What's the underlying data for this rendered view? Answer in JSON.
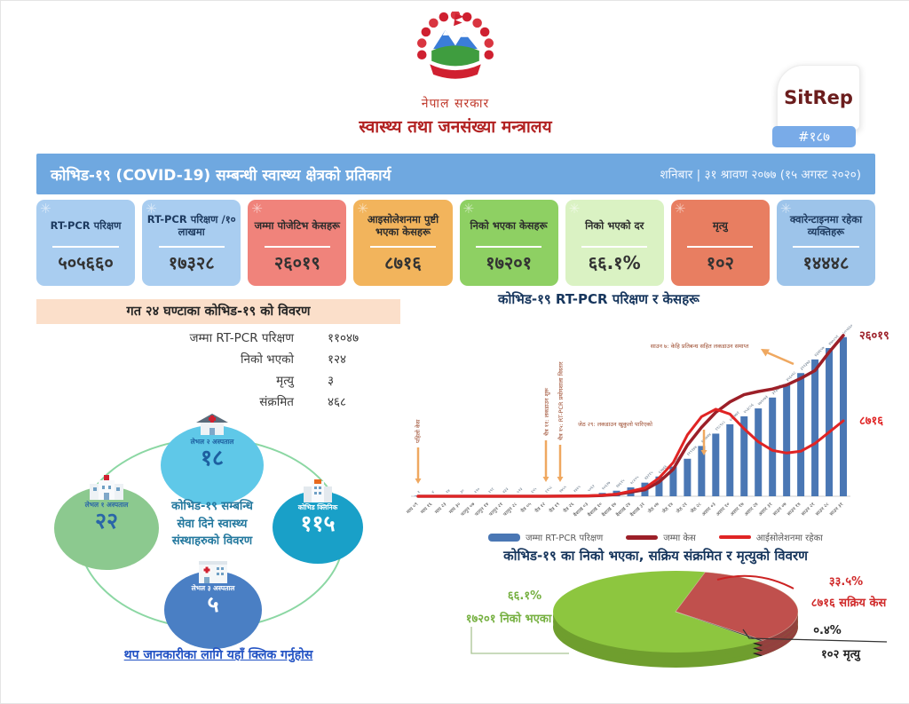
{
  "brand": {
    "gov": "नेपाल सरकार",
    "ministry": "स्वास्थ्य तथा जनसंख्या मन्त्रालय",
    "sitrep": "SitRep",
    "sitrep_number": "#१८७"
  },
  "header": {
    "title": "कोभिड-१९ (COVID-19) सम्बन्धी स्वास्थ्य क्षेत्रको प्रतिकार्य",
    "date": "शनिबार | ३१ श्रावण २०७७ (१५ अगस्ट २०२०)"
  },
  "stat_cards": [
    {
      "label": "RT-PCR परिक्षण",
      "value": "५०५६६०",
      "bg": "#a9cdf0",
      "fg": "#1d3a5f"
    },
    {
      "label": "RT-PCR परिक्षण /१० लाखमा",
      "value": "१७३२८",
      "bg": "#a9cdf0",
      "fg": "#1d3a5f"
    },
    {
      "label": "जम्मा पोजेटिभ केसहरू",
      "value": "२६०१९",
      "bg": "#f0837b",
      "fg": "#2b2b2b"
    },
    {
      "label": "आइसोलेशनमा पुष्टी भएका केसहरू",
      "value": "८७१६",
      "bg": "#f2b45c",
      "fg": "#2b2b2b"
    },
    {
      "label": "निको भएका केसहरू",
      "value": "१७२०१",
      "bg": "#8ed063",
      "fg": "#2b2b2b"
    },
    {
      "label": "निको भएको दर",
      "value": "६६.१%",
      "bg": "#daf2c3",
      "fg": "#2b2b2b"
    },
    {
      "label": "मृत्यु",
      "value": "१०२",
      "bg": "#e87e61",
      "fg": "#2b2b2b"
    },
    {
      "label": "क्वारेन्टाइनमा रहेका व्यक्तिहरू",
      "value": "१४४४८",
      "bg": "#9dc4ea",
      "fg": "#1d3a5f"
    }
  ],
  "last24": {
    "title": "गत २४ घण्टाका कोभिड-१९ को विवरण",
    "rows": [
      {
        "label": "जम्मा RT-PCR परिक्षण",
        "value": "११०४७"
      },
      {
        "label": "निको भएको",
        "value": "१२४"
      },
      {
        "label": "मृत्यु",
        "value": "३"
      },
      {
        "label": "संक्रमित",
        "value": "४६८"
      }
    ]
  },
  "facilities": {
    "center_lines": [
      "कोभिड-१९ सम्बन्धि",
      "सेवा दिने स्वास्थ्य",
      "संस्थाहरुको विवरण"
    ],
    "items": [
      {
        "label": "लेभल २ अस्पताल",
        "value": "१८",
        "bg": "#5fc8e8",
        "fg": "#1d5fa0"
      },
      {
        "label": "लेभल १ अस्पताल",
        "value": "२२",
        "bg": "#8cc98f",
        "fg": "#2a66a8"
      },
      {
        "label": "कोभिड क्लिनिक",
        "value": "११५",
        "bg": "#19a0c8",
        "fg": "#ffffff"
      },
      {
        "label": "लेभल ३ अस्पताल",
        "value": "५",
        "bg": "#4a7fc4",
        "fg": "#ffffff"
      }
    ],
    "link": "थप जानकारीका लागि यहाँ क्लिक गर्नुहोस"
  },
  "chart_data": [
    {
      "type": "bar",
      "title": "कोभिड-१९  RT-PCR परिक्षण र केसहरू",
      "grid": false,
      "legend_position": "bottom",
      "annotation_text_color": "#9c4b2e",
      "annotation_arrow_color": "#efa860",
      "categories": [
        "माघ ०९",
        "माघ १६",
        "माघ २३",
        "माघ ३०",
        "फागुन ०७",
        "फागुन १४",
        "फागुन २१",
        "फागुन २८",
        "चैत्र ०५",
        "चैत्र १२",
        "चैत्र १९",
        "चैत्र २६",
        "वैशाख ०३",
        "वैशाख १०",
        "वैशाख १७",
        "वैशाख २४",
        "वैशाख ३१",
        "जेठ ०७",
        "जेठ १४",
        "जेठ २१",
        "जेठ २८",
        "असार ०३",
        "असार १०",
        "असार १७",
        "असार २४",
        "असार ३१",
        "साउन ०७",
        "साउन १४",
        "साउन २१",
        "साउन २८",
        "साउन ३१"
      ],
      "series": [
        {
          "name": "जम्मा RT-PCR परिक्षण",
          "kind": "bar",
          "color": "#4a77b4",
          "axis_max": 550000,
          "values": [
            1,
            4,
            14,
            30,
            110,
            191,
            433,
            523,
            655,
            1158,
            1755,
            2425,
            5062,
            10627,
            17615,
            28205,
            43215,
            62766,
            94254,
            119147,
            159744,
            198988,
            228771,
            253856,
            279073,
            313646,
            356068,
            391373,
            434657,
            470859,
            505660
          ]
        },
        {
          "name": "जम्मा केस",
          "kind": "line",
          "color": "#9c1f28",
          "axis_max": 28000,
          "end_label": "२६०१९",
          "width": 3.5,
          "values": [
            0,
            0,
            0,
            1,
            1,
            1,
            1,
            2,
            2,
            5,
            9,
            31,
            59,
            134,
            295,
            682,
            1042,
            2300,
            4364,
            8274,
            11162,
            13564,
            15259,
            16423,
            16945,
            17344,
            17994,
            19063,
            20332,
            23310,
            26019
          ]
        },
        {
          "name": "आईसोलेशनमा रहेका",
          "kind": "line",
          "color": "#e02424",
          "axis_max": 20000,
          "end_label": "८७१६",
          "width": 3,
          "values": [
            0,
            0,
            0,
            1,
            1,
            1,
            1,
            2,
            2,
            5,
            9,
            30,
            55,
            120,
            250,
            600,
            950,
            2100,
            3900,
            7100,
            9200,
            10062,
            9500,
            7800,
            6300,
            5300,
            5000,
            5200,
            6100,
            7400,
            8716
          ]
        }
      ],
      "annotations": [
        {
          "text": "पहिलो केस",
          "orientation": "vertical"
        },
        {
          "text": "चैत्र ११: लकडाउन शुरू",
          "orientation": "vertical"
        },
        {
          "text": "चैत्र १५: RT-PCR प्रयोगशाला विस्तार",
          "orientation": "vertical"
        },
        {
          "text": "जेठ २९: लकडाउन खुकुलो पारिएको",
          "orientation": "horizontal"
        },
        {
          "text": "साउन ७: केहि प्रतिबन्ध सहित लकडाउन समाप्त",
          "orientation": "horizontal"
        }
      ]
    },
    {
      "type": "pie",
      "title": "कोभिड-१९ का निको भएका, सक्रिय संक्रमित र मृत्युको विवरण",
      "slices": [
        {
          "label": "निको भएका",
          "value": 17201,
          "pct": "६६.१%",
          "display": "१७२०१ निको भएका",
          "color": "#8dc63f",
          "depth_color": "#6f9e2e",
          "label_color": "#76b041"
        },
        {
          "label": "सक्रिय केस",
          "value": 8716,
          "pct": "३३.५%",
          "display": "८७१६ सक्रिय केस",
          "color": "#c0504d",
          "depth_color": "#93403e",
          "label_color": "#d02a2a"
        },
        {
          "label": "मृत्यु",
          "value": 102,
          "pct": "०.४%",
          "display": "१०२ मृत्यु",
          "color": "#2b2b2b",
          "depth_color": "#1e1e1e",
          "label_color": "#222222"
        }
      ]
    }
  ]
}
